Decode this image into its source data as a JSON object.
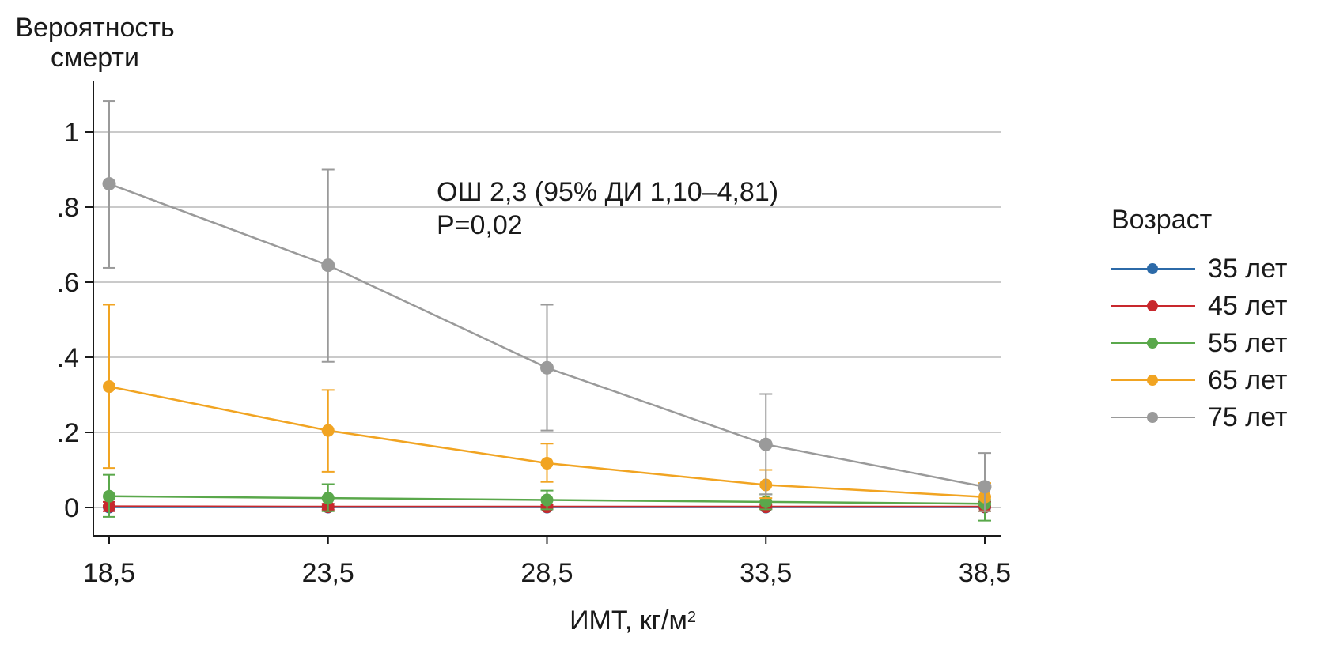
{
  "chart_data": {
    "type": "line",
    "ylabel_lines": [
      "Вероятность",
      "смерти"
    ],
    "xlabel": "ИМТ, кг/м",
    "xlabel_sup": "2",
    "annotation_lines": [
      "ОШ 2,3 (95% ДИ 1,10–4,81)",
      "P=0,02"
    ],
    "x": [
      18.5,
      23.5,
      28.5,
      33.5,
      38.5
    ],
    "x_tick_labels": [
      "18,5",
      "23,5",
      "28,5",
      "33,5",
      "38,5"
    ],
    "y_ticks": [
      0,
      0.2,
      0.4,
      0.6,
      0.8,
      1
    ],
    "y_tick_labels": [
      "0",
      ".2",
      ".4",
      ".6",
      ".8",
      "1"
    ],
    "xlim": [
      18.5,
      38.5
    ],
    "ylim": [
      -0.08,
      1.12
    ],
    "grid": "horizontal",
    "legend": {
      "title": "Возраст",
      "position": "right"
    },
    "series": [
      {
        "name": "35 лет",
        "color": "#2c6aa8",
        "values": [
          0.001,
          0.001,
          0.001,
          0.001,
          0.001
        ],
        "ci_low": [
          0.0,
          0.0,
          0.0,
          0.0,
          0.0
        ],
        "ci_high": [
          0.003,
          0.003,
          0.003,
          0.003,
          0.003
        ]
      },
      {
        "name": "45 лет",
        "color": "#c8282d",
        "values": [
          0.003,
          0.002,
          0.002,
          0.002,
          0.002
        ],
        "ci_low": [
          -0.01,
          -0.006,
          -0.004,
          -0.004,
          -0.01
        ],
        "ci_high": [
          0.015,
          0.01,
          0.008,
          0.008,
          0.015
        ]
      },
      {
        "name": "55 лет",
        "color": "#5aa84b",
        "values": [
          0.03,
          0.025,
          0.02,
          0.015,
          0.01
        ],
        "ci_low": [
          -0.025,
          -0.01,
          -0.005,
          -0.005,
          -0.035
        ],
        "ci_high": [
          0.087,
          0.062,
          0.045,
          0.035,
          0.02
        ]
      },
      {
        "name": "65 лет",
        "color": "#f1a422",
        "values": [
          0.322,
          0.205,
          0.118,
          0.06,
          0.028
        ],
        "ci_low": [
          0.105,
          0.095,
          0.068,
          0.025,
          -0.01
        ],
        "ci_high": [
          0.54,
          0.313,
          0.17,
          0.1,
          0.065
        ]
      },
      {
        "name": "75 лет",
        "color": "#9a9a9a",
        "values": [
          0.862,
          0.645,
          0.372,
          0.168,
          0.055
        ],
        "ci_low": [
          0.638,
          0.388,
          0.205,
          0.035,
          -0.01
        ],
        "ci_high": [
          1.082,
          0.9,
          0.54,
          0.302,
          0.145
        ]
      }
    ]
  }
}
